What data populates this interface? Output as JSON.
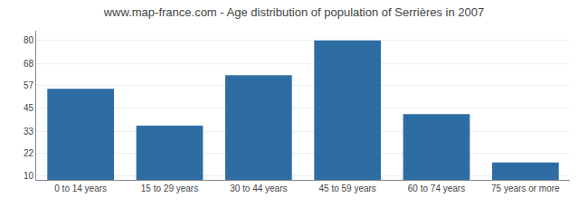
{
  "chart_data": {
    "type": "bar",
    "title": "www.map-france.com - Age distribution of population of Serrières in 2007",
    "categories": [
      "0 to 14 years",
      "15 to 29 years",
      "30 to 44 years",
      "45 to 59 years",
      "60 to 74 years",
      "75 years or more"
    ],
    "values": [
      55,
      36,
      62,
      80,
      42,
      17
    ],
    "color": "#2e6da4",
    "ylim": [
      8,
      85
    ],
    "yticks": [
      10,
      22,
      33,
      45,
      57,
      68,
      80
    ],
    "grid": true
  }
}
